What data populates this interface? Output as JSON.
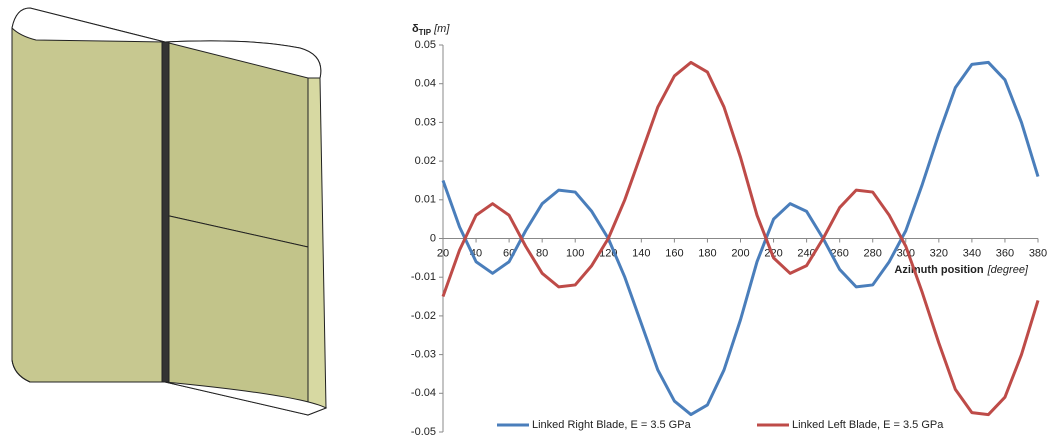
{
  "chart_data": {
    "type": "line",
    "y_label": {
      "symbol": "δ",
      "subscript": "TIP",
      "unit": "[m]"
    },
    "x_label": {
      "text": "Azimuth position",
      "unit": "[degree]"
    },
    "x": [
      20,
      30,
      40,
      50,
      60,
      70,
      80,
      90,
      100,
      110,
      120,
      130,
      140,
      150,
      160,
      170,
      180,
      190,
      200,
      210,
      220,
      230,
      240,
      250,
      260,
      270,
      280,
      290,
      300,
      310,
      320,
      330,
      340,
      350,
      360,
      370,
      380
    ],
    "series": [
      {
        "name": "Linked Right Blade, E = 3.5 GPa",
        "color": "#4a7ebb",
        "values": [
          0.015,
          0.003,
          -0.006,
          -0.009,
          -0.006,
          0.002,
          0.009,
          0.0125,
          0.012,
          0.007,
          0.0,
          -0.01,
          -0.022,
          -0.034,
          -0.042,
          -0.0455,
          -0.043,
          -0.034,
          -0.021,
          -0.006,
          0.005,
          0.009,
          0.007,
          0.0,
          -0.008,
          -0.0125,
          -0.012,
          -0.006,
          0.002,
          0.014,
          0.027,
          0.039,
          0.045,
          0.0455,
          0.041,
          0.03,
          0.016
        ]
      },
      {
        "name": "Linked Left Blade, E = 3.5 GPa",
        "color": "#be4b48",
        "values": [
          -0.015,
          -0.003,
          0.006,
          0.009,
          0.006,
          -0.002,
          -0.009,
          -0.0125,
          -0.012,
          -0.007,
          0.0,
          0.01,
          0.022,
          0.034,
          0.042,
          0.0455,
          0.043,
          0.034,
          0.021,
          0.006,
          -0.005,
          -0.009,
          -0.007,
          0.0,
          0.008,
          0.0125,
          0.012,
          0.006,
          -0.002,
          -0.014,
          -0.027,
          -0.039,
          -0.045,
          -0.0455,
          -0.041,
          -0.03,
          -0.016
        ]
      }
    ],
    "xlim": [
      20,
      380
    ],
    "xticks": [
      20,
      40,
      60,
      80,
      100,
      120,
      140,
      160,
      180,
      200,
      220,
      240,
      260,
      280,
      300,
      320,
      340,
      360,
      380
    ],
    "ylim": [
      -0.05,
      0.05
    ],
    "yticks": [
      -0.05,
      -0.04,
      -0.03,
      -0.02,
      -0.01,
      0,
      0.01,
      0.02,
      0.03,
      0.04,
      0.05
    ],
    "legend": "bottom"
  }
}
